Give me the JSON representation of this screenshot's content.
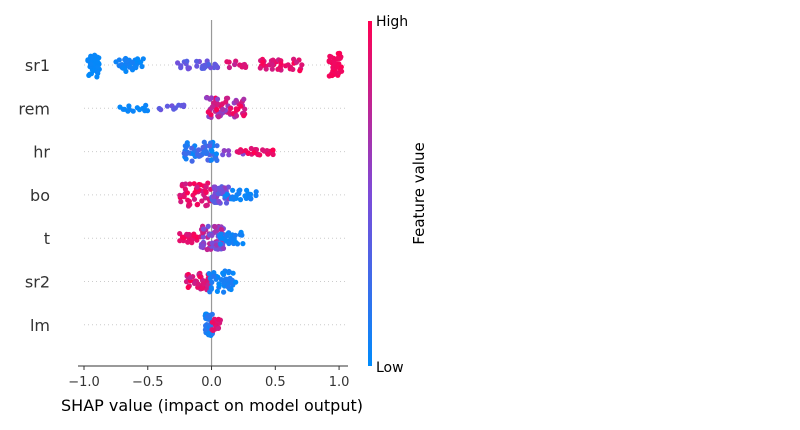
{
  "chart_data": {
    "type": "scatter",
    "subtype": "shap-beeswarm",
    "title": "",
    "xlabel": "SHAP value (impact on model output)",
    "xlim": [
      -1.0,
      1.07
    ],
    "xticks": [
      -1.0,
      -0.5,
      0.0,
      0.5,
      1.0
    ],
    "xtick_labels": [
      "−1.0",
      "−0.5",
      "0.0",
      "0.5",
      "1.0"
    ],
    "grid": false,
    "zero_line": true,
    "colors": {
      "low": "#008bfb",
      "mid": "#7d4bd8",
      "high": "#ff0052"
    },
    "colorbar": {
      "title": "Feature value",
      "high_label": "High",
      "low_label": "Low",
      "placement": "right"
    },
    "features": [
      {
        "name": "sr1",
        "clusters": [
          {
            "x": [
              -0.97,
              -0.88
            ],
            "n": 40,
            "v": [
              0.0,
              0.05
            ],
            "spread": 1.0
          },
          {
            "x": [
              -0.75,
              -0.53
            ],
            "n": 34,
            "v": [
              0.0,
              0.1
            ],
            "spread": 0.55
          },
          {
            "x": [
              -0.28,
              0.05
            ],
            "n": 30,
            "v": [
              0.3,
              0.5
            ],
            "spread": 0.35
          },
          {
            "x": [
              0.12,
              0.27
            ],
            "n": 12,
            "v": [
              0.75,
              0.9
            ],
            "spread": 0.35
          },
          {
            "x": [
              0.38,
              0.72
            ],
            "n": 36,
            "v": [
              0.8,
              1.0
            ],
            "spread": 0.5
          },
          {
            "x": [
              0.92,
              1.02
            ],
            "n": 40,
            "v": [
              0.92,
              1.0
            ],
            "spread": 1.0
          }
        ]
      },
      {
        "name": "rem",
        "clusters": [
          {
            "x": [
              -0.72,
              -0.5
            ],
            "n": 14,
            "v": [
              0.0,
              0.05
            ],
            "spread": 0.25
          },
          {
            "x": [
              -0.43,
              -0.2
            ],
            "n": 10,
            "v": [
              0.3,
              0.45
            ],
            "spread": 0.3
          },
          {
            "x": [
              -0.04,
              0.28
            ],
            "n": 60,
            "v": [
              0.55,
              1.0
            ],
            "spread": 0.9
          }
        ]
      },
      {
        "name": "hr",
        "clusters": [
          {
            "x": [
              -0.22,
              0.05
            ],
            "n": 55,
            "v": [
              0.0,
              0.35
            ],
            "spread": 0.8
          },
          {
            "x": [
              0.06,
              0.42
            ],
            "n": 8,
            "v": [
              0.4,
              0.6
            ],
            "spread": 0.3
          },
          {
            "x": [
              0.2,
              0.5
            ],
            "n": 30,
            "v": [
              0.85,
              1.0
            ],
            "spread": 0.3
          }
        ]
      },
      {
        "name": "bo",
        "clusters": [
          {
            "x": [
              -0.25,
              0.0
            ],
            "n": 45,
            "v": [
              0.8,
              1.0
            ],
            "spread": 1.0
          },
          {
            "x": [
              0.0,
              0.14
            ],
            "n": 40,
            "v": [
              0.3,
              0.6
            ],
            "spread": 0.7
          },
          {
            "x": [
              0.1,
              0.35
            ],
            "n": 30,
            "v": [
              0.0,
              0.1
            ],
            "spread": 0.4
          }
        ]
      },
      {
        "name": "t",
        "clusters": [
          {
            "x": [
              -0.25,
              -0.08
            ],
            "n": 24,
            "v": [
              0.85,
              1.0
            ],
            "spread": 0.4
          },
          {
            "x": [
              -0.09,
              0.1
            ],
            "n": 70,
            "v": [
              0.35,
              0.85
            ],
            "spread": 1.0
          },
          {
            "x": [
              0.06,
              0.26
            ],
            "n": 30,
            "v": [
              0.0,
              0.12
            ],
            "spread": 0.5
          }
        ]
      },
      {
        "name": "sr2",
        "clusters": [
          {
            "x": [
              -0.2,
              0.0
            ],
            "n": 45,
            "v": [
              0.75,
              1.0
            ],
            "spread": 0.7
          },
          {
            "x": [
              -0.02,
              0.19
            ],
            "n": 45,
            "v": [
              0.0,
              0.15
            ],
            "spread": 0.9
          }
        ]
      },
      {
        "name": "lm",
        "clusters": [
          {
            "x": [
              -0.05,
              0.01
            ],
            "n": 40,
            "v": [
              0.0,
              0.2
            ],
            "spread": 0.9
          },
          {
            "x": [
              0.0,
              0.07
            ],
            "n": 20,
            "v": [
              0.8,
              1.0
            ],
            "spread": 0.5
          }
        ]
      }
    ]
  }
}
